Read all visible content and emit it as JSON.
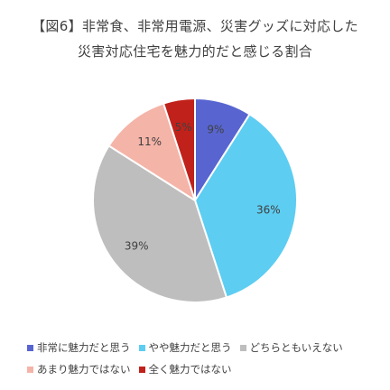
{
  "chart_data": {
    "type": "pie",
    "title_line1": "【図6】非常食、非常用電源、災害グッズに対応した",
    "title_line2": "災害対応住宅を魅力的だと感じる割合",
    "slices": [
      {
        "name": "非常に魅力だと思う",
        "value": 9,
        "label": "9%",
        "color": "#5865D0"
      },
      {
        "name": "やや魅力だと思う",
        "value": 36,
        "label": "36%",
        "color": "#5DCDF2"
      },
      {
        "name": "どちらともいえない",
        "value": 39,
        "label": "39%",
        "color": "#BEBEBE"
      },
      {
        "name": "あまり魅力ではない",
        "value": 11,
        "label": "11%",
        "color": "#F5B4A8"
      },
      {
        "name": "全く魅力ではない",
        "value": 5,
        "label": "5%",
        "color": "#C0211A"
      }
    ],
    "start_angle_deg": 0,
    "direction": "clockwise",
    "legend_position": "bottom"
  }
}
